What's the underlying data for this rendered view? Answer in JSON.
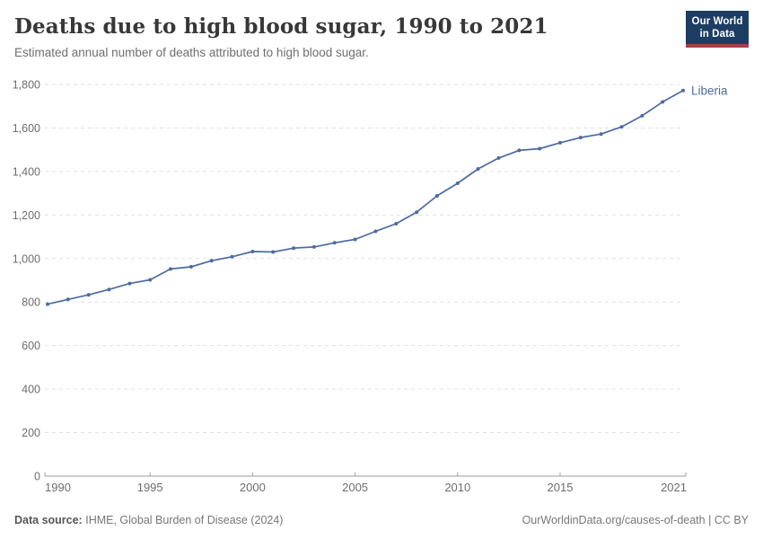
{
  "header": {
    "title": "Deaths due to high blood sugar, 1990 to 2021",
    "subtitle": "Estimated annual number of deaths attributed to high blood sugar.",
    "logo": {
      "line1": "Our World",
      "line2": "in Data",
      "bg_color": "#1d3d63",
      "accent_color": "#aa3d47"
    }
  },
  "chart_data": {
    "type": "line",
    "title": "Deaths due to high blood sugar, 1990 to 2021",
    "subtitle": "Estimated annual number of deaths attributed to high blood sugar.",
    "x": [
      1990,
      1991,
      1992,
      1993,
      1994,
      1995,
      1996,
      1997,
      1998,
      1999,
      2000,
      2001,
      2002,
      2003,
      2004,
      2005,
      2006,
      2007,
      2008,
      2009,
      2010,
      2011,
      2012,
      2013,
      2014,
      2015,
      2016,
      2017,
      2018,
      2019,
      2020,
      2021
    ],
    "series": [
      {
        "name": "Liberia",
        "color": "#4c6ba0",
        "values": [
          790,
          812,
          833,
          858,
          885,
          902,
          952,
          962,
          990,
          1008,
          1032,
          1030,
          1048,
          1053,
          1072,
          1088,
          1125,
          1160,
          1213,
          1288,
          1346,
          1412,
          1462,
          1497,
          1505,
          1532,
          1556,
          1572,
          1605,
          1656,
          1720,
          1772
        ]
      }
    ],
    "xlabel": "",
    "ylabel": "",
    "ylim": [
      0,
      1800
    ],
    "yticks": [
      0,
      200,
      400,
      600,
      800,
      1000,
      1200,
      1400,
      1600,
      1800
    ],
    "xticks": [
      1990,
      1995,
      2000,
      2005,
      2010,
      2015,
      2021
    ],
    "grid": "horizontal-dashed",
    "legend_position": "end-of-line-label",
    "grid_color": "#e2e2e2",
    "axis_color": "#9e9e9e",
    "tick_label_color": "#6e6e6e"
  },
  "footer": {
    "source_label": "Data source:",
    "source_text": "IHME, Global Burden of Disease (2024)",
    "rights": "OurWorldinData.org/causes-of-death | CC BY"
  }
}
